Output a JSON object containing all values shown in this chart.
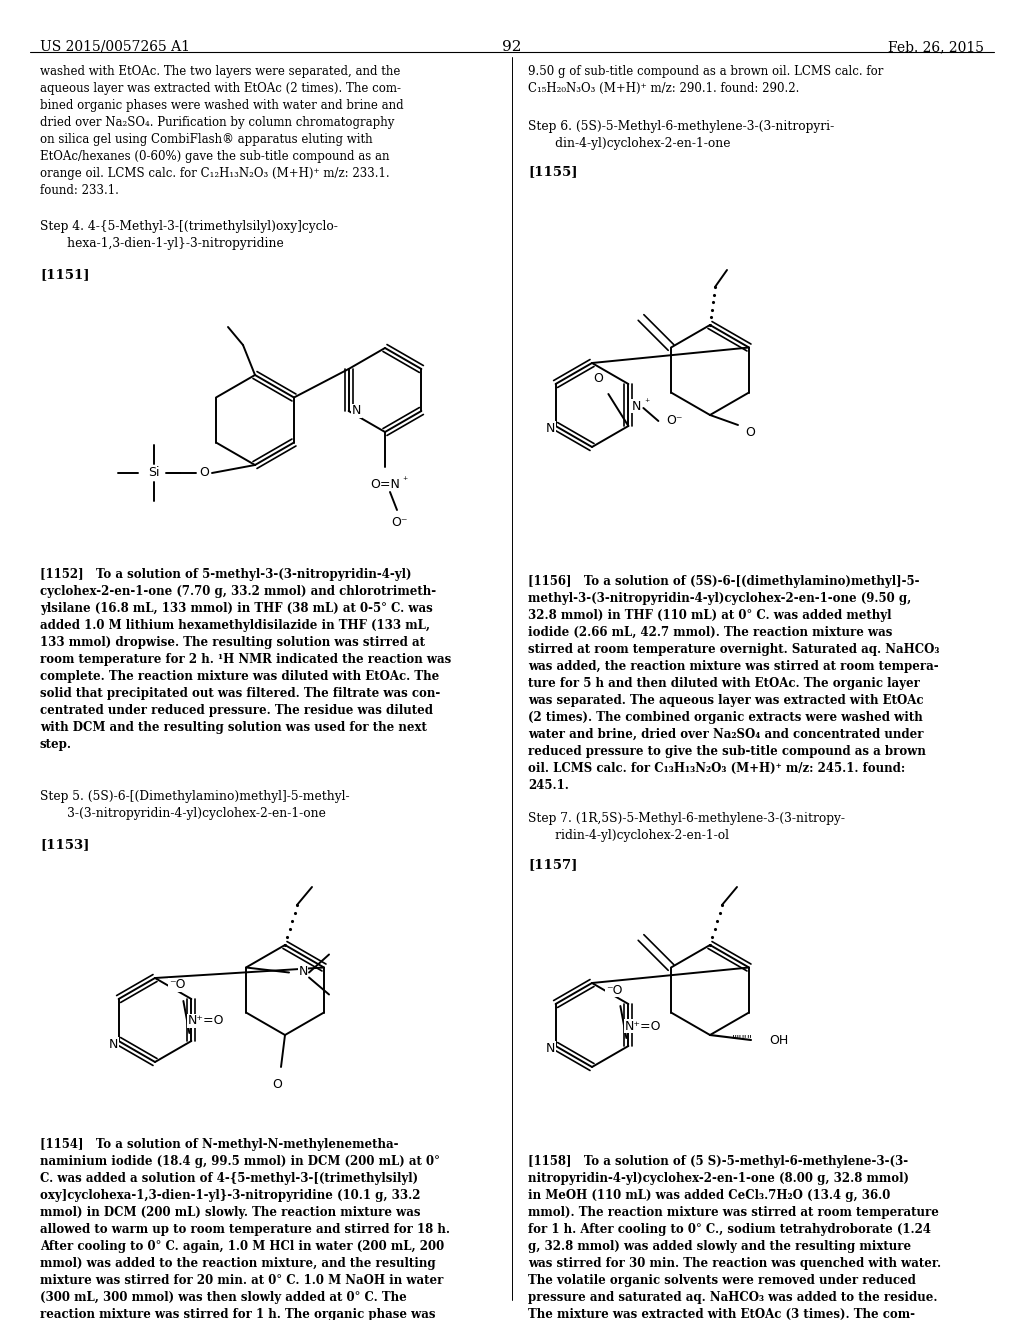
{
  "background_color": "#ffffff",
  "page_number": "92",
  "header_left": "US 2015/0057265 A1",
  "header_right": "Feb. 26, 2015"
}
